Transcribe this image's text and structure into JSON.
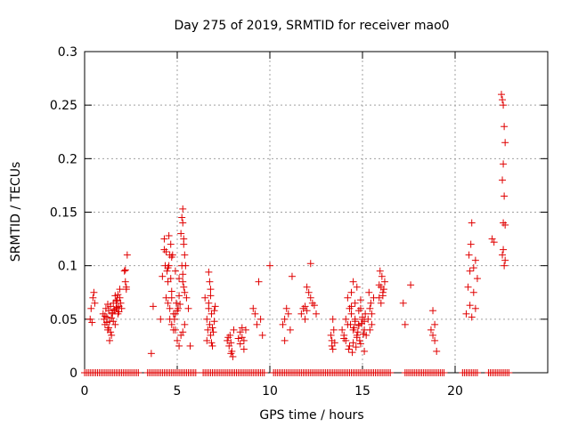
{
  "chart_data": {
    "type": "scatter",
    "title": "Day 275 of 2019, SRMTID for receiver mao0",
    "xlabel": "GPS time / hours",
    "ylabel": "SRMTID / TECUs",
    "xlim": [
      0,
      25
    ],
    "ylim": [
      0,
      0.3
    ],
    "xticks": [
      0,
      5,
      10,
      15,
      20
    ],
    "xtick_labels": [
      "0",
      "5",
      "10",
      "15",
      "20"
    ],
    "yticks": [
      0,
      0.05,
      0.1,
      0.15,
      0.2,
      0.25,
      0.3
    ],
    "ytick_labels": [
      "0",
      "0.05",
      "0.1",
      "0.15",
      "0.2",
      "0.25",
      "0.3"
    ],
    "grid": true,
    "marker": "+",
    "color": "#e00000",
    "series": [
      {
        "name": "SRMTID",
        "x": [
          0.3,
          0.35,
          0.4,
          0.45,
          0.5,
          0.55,
          1.0,
          1.05,
          1.1,
          1.15,
          1.2,
          1.25,
          1.3,
          1.35,
          1.4,
          1.45,
          1.5,
          1.55,
          1.6,
          1.65,
          1.7,
          1.75,
          1.8,
          1.85,
          1.9,
          1.95,
          2.0,
          1.1,
          1.2,
          1.3,
          1.4,
          1.5,
          1.6,
          1.7,
          1.8,
          1.9,
          1.25,
          1.45,
          1.65,
          1.85,
          1.35,
          1.55,
          1.75,
          2.15,
          2.2,
          2.25,
          2.3,
          2.2,
          2.25,
          3.6,
          3.7,
          4.1,
          4.2,
          4.3,
          4.35,
          4.4,
          4.45,
          4.5,
          4.55,
          4.6,
          4.65,
          4.7,
          4.75,
          4.8,
          4.85,
          4.9,
          4.95,
          5.0,
          5.05,
          5.1,
          5.15,
          5.2,
          5.25,
          5.3,
          5.35,
          5.4,
          5.45,
          5.5,
          4.4,
          4.5,
          4.6,
          4.7,
          4.8,
          4.9,
          5.0,
          5.1,
          5.2,
          5.3,
          5.4,
          4.3,
          4.5,
          4.7,
          4.9,
          5.1,
          5.3,
          5.25,
          5.3,
          5.35,
          5.4,
          5.3,
          5.35,
          4.55,
          4.6,
          4.65,
          4.7,
          5.6,
          5.7,
          6.5,
          6.6,
          6.65,
          6.7,
          6.75,
          6.8,
          6.85,
          6.9,
          6.95,
          7.0,
          7.05,
          6.6,
          6.7,
          6.8,
          6.9,
          7.0,
          6.7,
          6.8,
          6.75,
          6.85,
          7.7,
          7.8,
          7.85,
          7.9,
          7.95,
          8.0,
          8.05,
          7.75,
          7.9,
          8.3,
          8.4,
          8.5,
          8.6,
          8.7,
          8.4,
          8.5,
          8.6,
          9.1,
          9.2,
          9.5,
          9.6,
          9.4,
          9.3,
          10.0,
          10.7,
          10.8,
          10.9,
          11.0,
          10.8,
          11.2,
          11.1,
          11.7,
          11.8,
          11.9,
          12.0,
          12.1,
          12.2,
          12.3,
          12.2,
          12.0,
          11.9,
          12.4,
          12.5,
          13.3,
          13.35,
          13.4,
          13.45,
          13.5,
          13.4,
          13.35,
          13.9,
          14.0,
          14.1,
          14.2,
          14.3,
          14.4,
          14.5,
          14.6,
          14.7,
          14.8,
          14.9,
          15.0,
          15.1,
          15.2,
          14.1,
          14.3,
          14.5,
          14.7,
          14.9,
          15.1,
          14.2,
          14.4,
          14.6,
          14.8,
          15.0,
          14.35,
          14.55,
          14.75,
          14.95,
          15.15,
          14.0,
          14.25,
          14.45,
          14.65,
          14.85,
          15.05,
          14.5,
          14.7,
          14.9,
          14.6,
          14.8,
          14.4,
          15.1,
          15.3,
          15.4,
          15.5,
          15.6,
          15.5,
          15.4,
          15.45,
          15.35,
          15.9,
          16.0,
          16.1,
          16.2,
          15.95,
          16.05,
          16.15,
          16.0,
          16.1,
          15.9,
          17.2,
          17.3,
          17.6,
          18.7,
          18.8,
          18.9,
          19.0,
          18.8,
          18.9,
          20.6,
          20.7,
          20.8,
          20.75,
          20.85,
          20.9,
          21.0,
          21.1,
          21.2,
          21.0,
          21.1,
          20.9,
          20.8,
          22.0,
          22.1,
          22.5,
          22.55,
          22.6,
          22.65,
          22.7,
          22.6,
          22.55,
          22.65,
          22.6,
          22.7,
          22.6,
          22.55,
          22.7,
          22.65
        ],
        "y": [
          0.05,
          0.06,
          0.047,
          0.07,
          0.075,
          0.065,
          0.055,
          0.05,
          0.045,
          0.06,
          0.052,
          0.04,
          0.058,
          0.048,
          0.062,
          0.035,
          0.055,
          0.065,
          0.058,
          0.072,
          0.06,
          0.068,
          0.055,
          0.062,
          0.07,
          0.065,
          0.06,
          0.053,
          0.047,
          0.042,
          0.038,
          0.056,
          0.059,
          0.067,
          0.073,
          0.078,
          0.064,
          0.051,
          0.045,
          0.057,
          0.03,
          0.048,
          0.061,
          0.095,
          0.085,
          0.08,
          0.11,
          0.096,
          0.078,
          0.018,
          0.062,
          0.05,
          0.09,
          0.125,
          0.1,
          0.113,
          0.095,
          0.085,
          0.1,
          0.06,
          0.12,
          0.07,
          0.11,
          0.055,
          0.05,
          0.04,
          0.065,
          0.058,
          0.06,
          0.072,
          0.064,
          0.13,
          0.1,
          0.14,
          0.08,
          0.075,
          0.1,
          0.07,
          0.07,
          0.065,
          0.05,
          0.045,
          0.04,
          0.055,
          0.03,
          0.025,
          0.035,
          0.038,
          0.045,
          0.115,
          0.098,
          0.108,
          0.095,
          0.088,
          0.092,
          0.145,
          0.153,
          0.12,
          0.11,
          0.085,
          0.125,
          0.128,
          0.11,
          0.088,
          0.076,
          0.06,
          0.025,
          0.07,
          0.05,
          0.04,
          0.06,
          0.045,
          0.035,
          0.055,
          0.042,
          0.038,
          0.058,
          0.062,
          0.03,
          0.065,
          0.072,
          0.025,
          0.048,
          0.094,
          0.078,
          0.085,
          0.028,
          0.03,
          0.025,
          0.035,
          0.028,
          0.02,
          0.015,
          0.04,
          0.033,
          0.018,
          0.032,
          0.038,
          0.042,
          0.03,
          0.04,
          0.027,
          0.033,
          0.022,
          0.06,
          0.055,
          0.05,
          0.035,
          0.085,
          0.045,
          0.1,
          0.045,
          0.05,
          0.06,
          0.055,
          0.03,
          0.09,
          0.04,
          0.055,
          0.06,
          0.05,
          0.08,
          0.075,
          0.07,
          0.065,
          0.102,
          0.058,
          0.062,
          0.063,
          0.055,
          0.035,
          0.03,
          0.05,
          0.04,
          0.028,
          0.022,
          0.025,
          0.04,
          0.035,
          0.05,
          0.045,
          0.06,
          0.055,
          0.04,
          0.05,
          0.035,
          0.045,
          0.06,
          0.05,
          0.04,
          0.035,
          0.03,
          0.025,
          0.028,
          0.033,
          0.027,
          0.02,
          0.07,
          0.075,
          0.065,
          0.058,
          0.052,
          0.045,
          0.042,
          0.038,
          0.046,
          0.055,
          0.032,
          0.022,
          0.019,
          0.024,
          0.03,
          0.036,
          0.085,
          0.08,
          0.068,
          0.048,
          0.044,
          0.062,
          0.048,
          0.05,
          0.06,
          0.055,
          0.07,
          0.045,
          0.04,
          0.065,
          0.075,
          0.07,
          0.08,
          0.075,
          0.085,
          0.095,
          0.09,
          0.078,
          0.065,
          0.072,
          0.082,
          0.065,
          0.045,
          0.082,
          0.04,
          0.035,
          0.045,
          0.02,
          0.058,
          0.03,
          0.055,
          0.08,
          0.095,
          0.11,
          0.12,
          0.14,
          0.098,
          0.105,
          0.088,
          0.075,
          0.06,
          0.052,
          0.063,
          0.125,
          0.122,
          0.26,
          0.255,
          0.25,
          0.23,
          0.215,
          0.195,
          0.18,
          0.165,
          0.14,
          0.138,
          0.115,
          0.11,
          0.105,
          0.1
        ]
      },
      {
        "name": "zero",
        "zero_x_start": 0.0,
        "zero_x_end": 22.9,
        "zero_step": 0.1,
        "zero_gaps": [
          [
            3.0,
            3.4
          ],
          [
            6.0,
            6.3
          ],
          [
            9.7,
            10.1
          ],
          [
            16.5,
            17.2
          ],
          [
            19.5,
            20.4
          ],
          [
            21.3,
            21.8
          ]
        ]
      }
    ]
  }
}
